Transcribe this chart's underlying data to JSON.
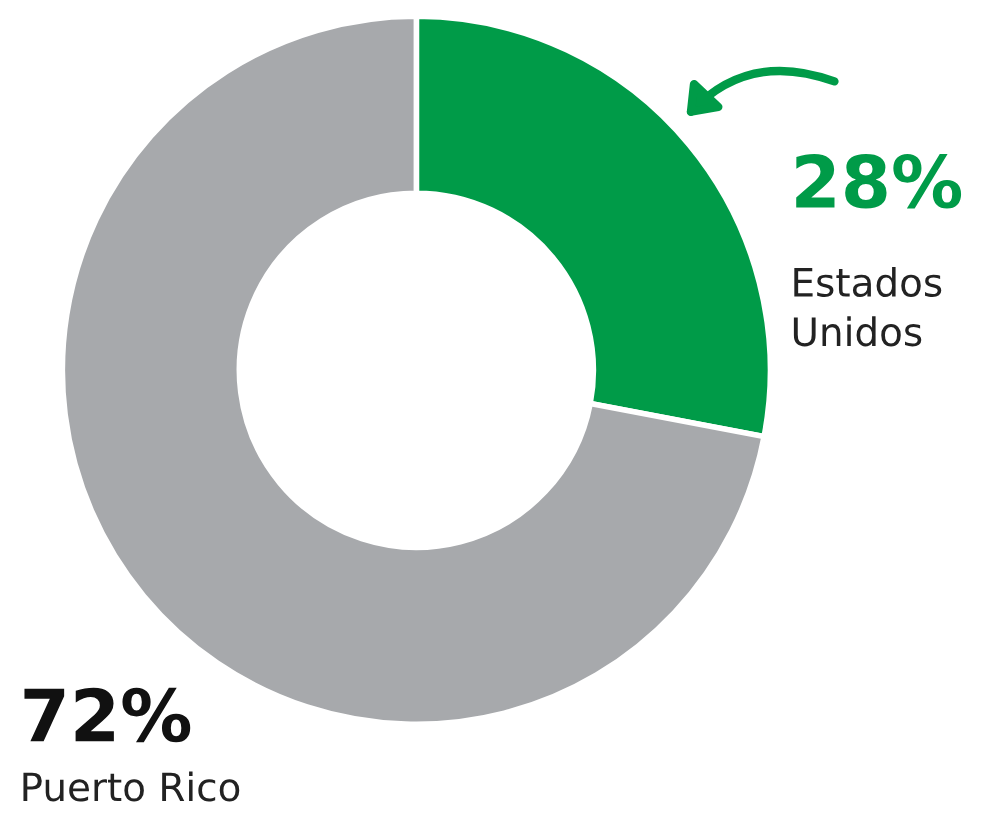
{
  "chart_data": {
    "type": "donut",
    "categories": [
      "Estados Unidos",
      "Puerto Rico"
    ],
    "values": [
      28,
      72
    ],
    "colors": [
      "#009b48",
      "#a7a9ac"
    ],
    "value_labels": [
      "28%",
      "72%"
    ],
    "legend": false
  }
}
